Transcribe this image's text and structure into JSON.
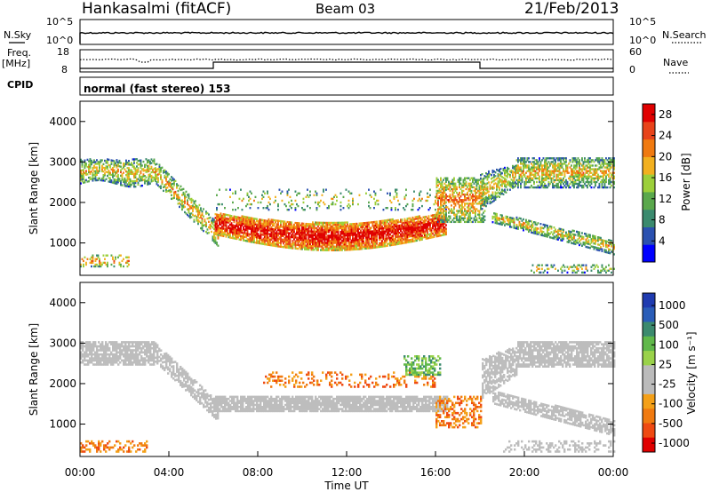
{
  "header": {
    "station": "Hankasalmi (fitACF)",
    "beam": "Beam 03",
    "date": "21/Feb/2013"
  },
  "panels": {
    "nsky": {
      "label": "N.Sky",
      "yticks": [
        "10^5",
        "10^0"
      ],
      "right_label": "N.Search",
      "right_yticks": [
        "10^5",
        "10^0"
      ]
    },
    "freq": {
      "label_line1": "Freq.",
      "label_line2": "[MHz]",
      "yticks": [
        "18",
        "8"
      ],
      "right_label": "Nave",
      "right_yticks": [
        "60",
        "0"
      ]
    },
    "cpid": {
      "label": "CPID",
      "text": "normal (fast stereo) 153"
    }
  },
  "colors": {
    "power_scale": [
      "#0000ff",
      "#2b51b0",
      "#3b8a6e",
      "#5aa84c",
      "#9ccf3a",
      "#f2b01f",
      "#f07a10",
      "#e8431a",
      "#e00000"
    ],
    "velocity_scale": [
      "#1f3bb0",
      "#2a5db8",
      "#3b8a6e",
      "#60b84a",
      "#9ad24a",
      "#bbbbbb",
      "#bbbbbb",
      "#f4a018",
      "#f07a10",
      "#ef4a12",
      "#e00000"
    ],
    "ground_scatter": "#bdbdbd"
  },
  "chart_data": [
    {
      "type": "heatmap",
      "title": "Power",
      "xlabel": "",
      "ylabel": "Slant Range [km]",
      "ylim": [
        200,
        4500
      ],
      "yticks": [
        "4000",
        "3000",
        "2000",
        "1000"
      ],
      "colorbar": {
        "label": "Power [dB]",
        "ticks": [
          "28",
          "24",
          "20",
          "16",
          "12",
          "8",
          "4"
        ],
        "range": [
          0,
          30
        ]
      },
      "features": [
        {
          "t0": 0.0,
          "t1": 3.3,
          "r0": 2450,
          "r1": 3100,
          "kind": "band"
        },
        {
          "t0": 3.3,
          "t1": 5.8,
          "r0": 1150,
          "r1": 2950,
          "kind": "descending"
        },
        {
          "t0": 6.0,
          "t1": 16.5,
          "r0": 900,
          "r1": 1800,
          "kind": "strong-band"
        },
        {
          "t0": 16.5,
          "t1": 18.2,
          "r0": 1600,
          "r1": 2500,
          "kind": "patch"
        },
        {
          "t0": 18.0,
          "t1": 19.5,
          "r0": 1800,
          "r1": 2700,
          "kind": "rising"
        },
        {
          "t0": 19.5,
          "t1": 24.0,
          "r0": 2300,
          "r1": 3100,
          "kind": "band"
        },
        {
          "t0": 18.5,
          "t1": 24.0,
          "r0": 700,
          "r1": 1500,
          "kind": "descending"
        }
      ]
    },
    {
      "type": "heatmap",
      "title": "Velocity",
      "xlabel": "Time UT",
      "ylabel": "Slant Range [km]",
      "ylim": [
        200,
        4500
      ],
      "yticks": [
        "4000",
        "3000",
        "2000",
        "1000"
      ],
      "xticks": [
        "00:00",
        "04:00",
        "08:00",
        "12:00",
        "16:00",
        "20:00",
        "00:00"
      ],
      "colorbar": {
        "label": "Velocity [m s⁻¹]",
        "ticks": [
          "1000",
          "500",
          "100",
          "25",
          "-25",
          "-100",
          "-500",
          "-1000"
        ]
      }
    }
  ]
}
